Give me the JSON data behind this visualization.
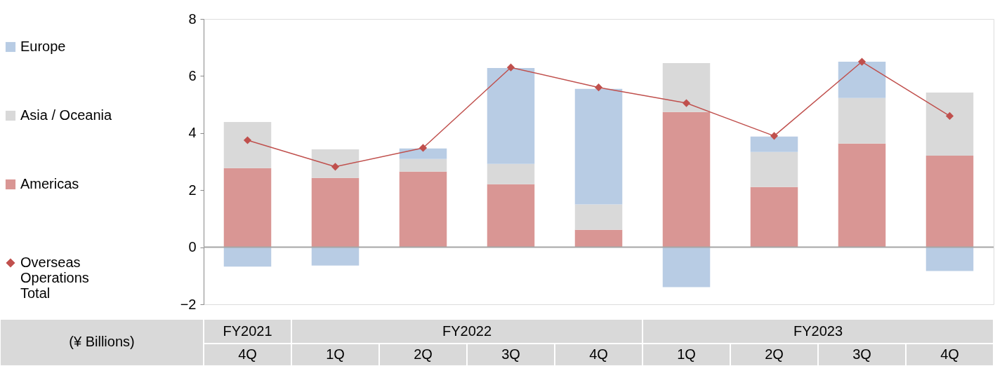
{
  "chart_data": {
    "type": "bar",
    "stacked": true,
    "categories": [
      "4Q",
      "1Q",
      "2Q",
      "3Q",
      "4Q",
      "1Q",
      "2Q",
      "3Q",
      "4Q"
    ],
    "series": [
      {
        "name": "Americas",
        "color": "#d99694",
        "values": [
          2.77,
          2.43,
          2.65,
          2.21,
          0.61,
          4.74,
          2.11,
          3.63,
          3.21
        ]
      },
      {
        "name": "Asia / Oceania",
        "color": "#d9d9d9",
        "values": [
          1.62,
          1.0,
          0.44,
          0.71,
          0.89,
          1.71,
          1.23,
          1.6,
          2.21
        ]
      },
      {
        "name": "Europe",
        "color": "#b8cce4",
        "values": [
          -0.68,
          -0.64,
          0.37,
          3.36,
          4.05,
          -1.4,
          0.54,
          1.27,
          -0.83
        ]
      },
      {
        "name": "Overseas Operations Total",
        "type": "line",
        "color": "#c0504d",
        "marker": "diamond",
        "values": [
          3.75,
          2.82,
          3.48,
          6.3,
          5.6,
          5.05,
          3.9,
          6.5,
          4.6
        ]
      }
    ],
    "ylim": [
      -2,
      8
    ],
    "yticks": [
      -2,
      0,
      2,
      4,
      6,
      8
    ],
    "grid": false,
    "legend": "left",
    "ref_lines": [
      {
        "axis": "y",
        "value": 0,
        "color": "#a6a6a6"
      }
    ],
    "annotations": [
      "(¥ Billions)",
      "FY2021",
      "FY2022",
      "FY2023"
    ]
  }
}
